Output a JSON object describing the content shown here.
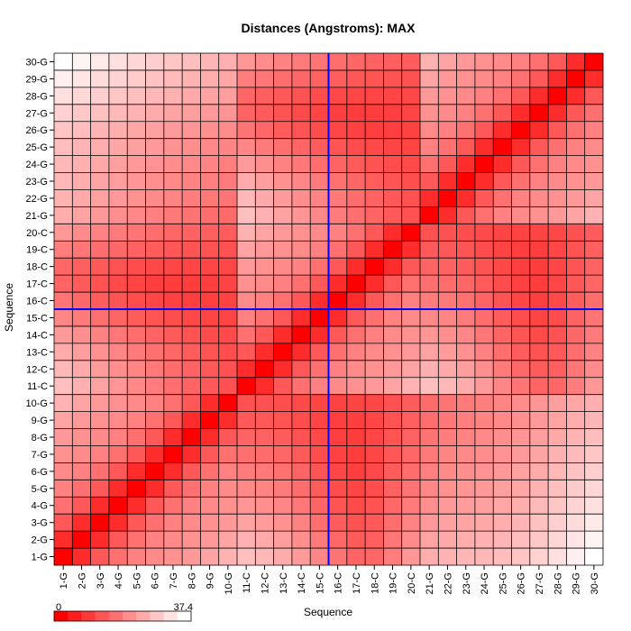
{
  "chart_data": {
    "type": "heatmap",
    "title": "Distances (Angstroms):  MAX",
    "xlabel": "Sequence",
    "ylabel": "Sequence",
    "x_ticks": [
      "1-G",
      "2-G",
      "3-G",
      "4-G",
      "5-G",
      "6-G",
      "7-G",
      "8-G",
      "9-G",
      "10-G",
      "11-C",
      "12-C",
      "13-C",
      "14-C",
      "15-C",
      "16-C",
      "17-C",
      "18-C",
      "19-C",
      "20-C",
      "21-G",
      "22-G",
      "23-G",
      "24-G",
      "25-G",
      "26-G",
      "27-G",
      "28-G",
      "29-G",
      "30-G"
    ],
    "y_ticks": [
      "1-G",
      "2-G",
      "3-G",
      "4-G",
      "5-G",
      "6-G",
      "7-G",
      "8-G",
      "9-G",
      "10-G",
      "11-C",
      "12-C",
      "13-C",
      "14-C",
      "15-C",
      "16-C",
      "17-C",
      "18-C",
      "19-C",
      "20-C",
      "21-G",
      "22-G",
      "23-G",
      "24-G",
      "25-G",
      "26-G",
      "27-G",
      "28-G",
      "29-G",
      "30-G"
    ],
    "color_scale": {
      "min": 0,
      "max": 37.4,
      "min_label": "0",
      "max_label": "37.4",
      "low_color": "#ff0000",
      "high_color": "#ffffff"
    },
    "crosshair": {
      "x": "15-C",
      "y": "15-C",
      "color": "#0000ff"
    },
    "matrix": [
      [
        0.0,
        6.5,
        12.9,
        16.4,
        18.9,
        20.2,
        21.3,
        22.4,
        24.0,
        26.1,
        28.0,
        27.0,
        25.1,
        22.6,
        19.7,
        17.0,
        14.7,
        15.0,
        18.4,
        22.1,
        25.4,
        26.3,
        26.7,
        27.0,
        27.7,
        28.9,
        30.6,
        32.8,
        35.0,
        37.4
      ],
      [
        6.5,
        0.0,
        6.5,
        12.9,
        16.4,
        18.9,
        20.2,
        21.3,
        22.4,
        24.0,
        25.9,
        24.9,
        23.2,
        20.8,
        18.0,
        15.3,
        13.4,
        14.0,
        17.3,
        20.6,
        23.9,
        24.9,
        25.4,
        25.8,
        26.6,
        27.7,
        29.4,
        31.5,
        33.6,
        35.8
      ],
      [
        12.9,
        6.5,
        0.0,
        6.5,
        12.9,
        16.4,
        18.9,
        20.2,
        21.3,
        22.4,
        23.7,
        22.8,
        21.3,
        19.0,
        16.3,
        13.7,
        12.1,
        13.0,
        16.2,
        19.2,
        22.3,
        23.6,
        24.1,
        24.6,
        25.4,
        26.5,
        28.2,
        30.2,
        32.2,
        34.2
      ],
      [
        16.4,
        12.9,
        6.5,
        0.0,
        6.5,
        12.9,
        16.4,
        18.9,
        20.2,
        21.3,
        21.8,
        21.0,
        19.6,
        17.4,
        14.8,
        12.3,
        10.9,
        12.1,
        15.3,
        18.1,
        21.0,
        22.4,
        23.0,
        23.5,
        24.4,
        25.5,
        27.1,
        29.1,
        31.0,
        32.9
      ],
      [
        18.9,
        16.4,
        12.9,
        6.5,
        0.0,
        6.5,
        12.9,
        16.4,
        18.9,
        20.2,
        20.0,
        19.4,
        18.1,
        16.0,
        13.5,
        11.2,
        10.0,
        11.3,
        14.3,
        17.0,
        19.8,
        21.3,
        22.0,
        22.5,
        23.4,
        24.5,
        26.1,
        28.0,
        29.8,
        31.6
      ],
      [
        20.2,
        18.9,
        16.4,
        12.9,
        6.5,
        0.0,
        6.5,
        12.9,
        16.4,
        18.9,
        18.2,
        17.7,
        16.5,
        14.6,
        12.3,
        10.3,
        9.3,
        10.7,
        13.5,
        16.0,
        18.7,
        20.3,
        21.0,
        21.6,
        22.5,
        23.6,
        25.1,
        26.9,
        28.6,
        30.3
      ],
      [
        21.3,
        20.2,
        18.9,
        16.4,
        12.9,
        6.5,
        0.0,
        6.5,
        12.9,
        16.4,
        16.3,
        15.9,
        14.9,
        13.3,
        11.3,
        9.6,
        9.0,
        10.3,
        12.8,
        15.1,
        17.7,
        19.3,
        20.0,
        20.7,
        21.6,
        22.6,
        24.1,
        25.8,
        27.4,
        29.0
      ],
      [
        22.4,
        21.3,
        20.2,
        18.9,
        16.4,
        12.9,
        6.5,
        0.0,
        6.5,
        12.9,
        14.6,
        14.3,
        13.5,
        12.1,
        10.5,
        9.3,
        9.0,
        10.1,
        12.3,
        14.4,
        16.8,
        18.4,
        19.2,
        19.9,
        20.8,
        21.8,
        23.2,
        24.8,
        26.3,
        27.8
      ],
      [
        24.0,
        22.4,
        21.3,
        20.2,
        18.9,
        16.4,
        12.9,
        6.5,
        0.0,
        6.5,
        13.1,
        12.9,
        12.3,
        11.3,
        10.0,
        9.3,
        9.3,
        10.1,
        12.0,
        13.9,
        16.1,
        17.6,
        18.5,
        19.2,
        20.1,
        21.1,
        22.4,
        23.9,
        25.3,
        26.7
      ],
      [
        26.1,
        24.0,
        22.4,
        21.3,
        20.2,
        18.9,
        16.4,
        12.9,
        6.5,
        0.0,
        11.9,
        11.9,
        11.5,
        10.8,
        10.0,
        9.7,
        9.9,
        10.4,
        11.9,
        13.6,
        15.6,
        17.0,
        17.9,
        18.6,
        19.5,
        20.5,
        21.7,
        23.1,
        24.4,
        25.7
      ],
      [
        28.0,
        25.9,
        23.7,
        21.8,
        20.0,
        18.2,
        16.3,
        14.6,
        13.1,
        11.9,
        0.0,
        6.5,
        12.9,
        16.4,
        18.9,
        20.2,
        21.3,
        22.4,
        24.0,
        26.1,
        28.0,
        27.0,
        25.1,
        22.6,
        19.7,
        17.0,
        14.7,
        15.0,
        18.4,
        22.1
      ],
      [
        27.0,
        24.9,
        22.8,
        21.0,
        19.4,
        17.7,
        15.9,
        14.3,
        12.9,
        11.9,
        6.5,
        0.0,
        6.5,
        12.9,
        16.4,
        18.9,
        20.2,
        21.3,
        22.4,
        24.0,
        25.9,
        24.9,
        23.2,
        20.8,
        18.0,
        15.3,
        13.4,
        14.0,
        17.3,
        20.6
      ],
      [
        25.1,
        23.2,
        21.3,
        19.6,
        18.1,
        16.5,
        14.9,
        13.5,
        12.3,
        11.5,
        12.9,
        6.5,
        0.0,
        6.5,
        12.9,
        16.4,
        18.9,
        20.2,
        21.3,
        22.4,
        23.7,
        22.8,
        21.3,
        19.0,
        16.3,
        13.7,
        12.1,
        13.0,
        16.2,
        19.2
      ],
      [
        22.6,
        20.8,
        19.0,
        17.4,
        16.0,
        14.6,
        13.3,
        12.1,
        11.3,
        10.8,
        16.4,
        12.9,
        6.5,
        0.0,
        6.5,
        12.9,
        16.4,
        18.9,
        20.2,
        21.3,
        21.8,
        21.0,
        19.6,
        17.4,
        14.8,
        12.3,
        10.9,
        12.1,
        15.3,
        18.1
      ],
      [
        19.7,
        18.0,
        16.3,
        14.8,
        13.5,
        12.3,
        11.3,
        10.5,
        10.0,
        10.0,
        18.9,
        16.4,
        12.9,
        6.5,
        0.0,
        6.5,
        12.9,
        16.4,
        18.9,
        20.2,
        20.0,
        19.4,
        18.1,
        16.0,
        13.5,
        11.2,
        10.0,
        11.3,
        14.3,
        17.0
      ],
      [
        17.0,
        15.3,
        13.7,
        12.3,
        11.2,
        10.3,
        9.6,
        9.3,
        9.3,
        9.7,
        20.2,
        18.9,
        16.4,
        12.9,
        6.5,
        0.0,
        6.5,
        12.9,
        16.4,
        18.9,
        18.2,
        17.7,
        16.5,
        14.6,
        12.3,
        10.3,
        9.3,
        10.7,
        13.5,
        16.0
      ],
      [
        14.7,
        13.4,
        12.1,
        10.9,
        10.0,
        9.3,
        9.0,
        9.0,
        9.3,
        9.9,
        21.3,
        20.2,
        18.9,
        16.4,
        12.9,
        6.5,
        0.0,
        6.5,
        12.9,
        16.4,
        16.3,
        15.9,
        14.9,
        13.3,
        11.3,
        9.6,
        9.0,
        10.3,
        12.8,
        15.1
      ],
      [
        15.0,
        14.0,
        13.0,
        12.1,
        11.3,
        10.7,
        10.3,
        10.1,
        10.1,
        10.4,
        22.4,
        21.3,
        20.2,
        18.9,
        16.4,
        12.9,
        6.5,
        0.0,
        6.5,
        12.9,
        14.6,
        14.3,
        13.5,
        12.1,
        10.5,
        9.3,
        9.0,
        10.1,
        12.3,
        14.4
      ],
      [
        18.4,
        17.3,
        16.2,
        15.3,
        14.3,
        13.5,
        12.8,
        12.3,
        12.0,
        11.9,
        24.0,
        22.4,
        21.3,
        20.2,
        18.9,
        16.4,
        12.9,
        6.5,
        0.0,
        6.5,
        13.1,
        12.9,
        12.3,
        11.3,
        10.0,
        9.3,
        9.3,
        10.1,
        12.0,
        13.9
      ],
      [
        22.1,
        20.6,
        19.2,
        18.1,
        17.0,
        16.0,
        15.1,
        14.4,
        13.9,
        13.6,
        26.1,
        24.0,
        22.4,
        21.3,
        20.2,
        18.9,
        16.4,
        12.9,
        6.5,
        0.0,
        11.9,
        11.9,
        11.5,
        10.8,
        10.0,
        9.7,
        9.9,
        10.4,
        11.9,
        13.6
      ],
      [
        25.4,
        23.9,
        22.3,
        21.0,
        19.8,
        18.7,
        17.7,
        16.8,
        16.1,
        15.6,
        28.0,
        25.9,
        23.7,
        21.8,
        20.0,
        18.2,
        16.3,
        14.6,
        13.1,
        11.9,
        0.0,
        6.5,
        12.9,
        16.4,
        18.9,
        20.2,
        21.3,
        22.4,
        24.0,
        26.1
      ],
      [
        26.3,
        24.9,
        23.6,
        22.4,
        21.3,
        20.3,
        19.3,
        18.4,
        17.6,
        17.0,
        27.0,
        24.9,
        22.8,
        21.0,
        19.4,
        17.7,
        15.9,
        14.3,
        12.9,
        11.9,
        6.5,
        0.0,
        6.5,
        12.9,
        16.4,
        18.9,
        20.2,
        21.3,
        22.4,
        24.0
      ],
      [
        26.7,
        25.4,
        24.1,
        23.0,
        22.0,
        21.0,
        20.0,
        19.2,
        18.5,
        17.9,
        25.1,
        23.2,
        21.3,
        19.6,
        18.1,
        16.5,
        14.9,
        13.5,
        12.3,
        11.5,
        12.9,
        6.5,
        0.0,
        6.5,
        12.9,
        16.4,
        18.9,
        20.2,
        21.3,
        22.4
      ],
      [
        27.0,
        25.8,
        24.6,
        23.5,
        22.5,
        21.6,
        20.7,
        19.9,
        19.2,
        18.6,
        22.6,
        20.8,
        19.0,
        17.4,
        16.0,
        14.6,
        13.3,
        12.1,
        11.3,
        10.8,
        16.4,
        12.9,
        6.5,
        0.0,
        6.5,
        12.9,
        16.4,
        18.9,
        20.2,
        21.3
      ],
      [
        27.7,
        26.6,
        25.4,
        24.4,
        23.4,
        22.5,
        21.6,
        20.8,
        20.1,
        19.5,
        19.7,
        18.0,
        16.3,
        14.8,
        13.5,
        12.3,
        11.3,
        10.5,
        10.0,
        10.0,
        18.9,
        16.4,
        12.9,
        6.5,
        0.0,
        6.5,
        12.9,
        16.4,
        18.9,
        20.2
      ],
      [
        28.9,
        27.7,
        26.5,
        25.5,
        24.5,
        23.6,
        22.6,
        21.8,
        21.1,
        20.5,
        17.0,
        15.3,
        13.7,
        12.3,
        11.2,
        10.3,
        9.6,
        9.3,
        9.3,
        9.7,
        20.2,
        18.9,
        16.4,
        12.9,
        6.5,
        0.0,
        6.5,
        12.9,
        16.4,
        18.9
      ],
      [
        30.6,
        29.4,
        28.2,
        27.1,
        26.1,
        25.1,
        24.1,
        23.2,
        22.4,
        21.7,
        14.7,
        13.4,
        12.1,
        10.9,
        10.0,
        9.3,
        9.0,
        9.0,
        9.3,
        9.9,
        21.3,
        20.2,
        18.9,
        16.4,
        12.9,
        6.5,
        0.0,
        6.5,
        12.9,
        16.4
      ],
      [
        32.8,
        31.5,
        30.2,
        29.1,
        28.0,
        26.9,
        25.8,
        24.8,
        23.9,
        23.1,
        15.0,
        14.0,
        13.0,
        12.1,
        11.3,
        10.7,
        10.3,
        10.1,
        10.1,
        10.4,
        22.4,
        21.3,
        20.2,
        18.9,
        16.4,
        12.9,
        6.5,
        0.0,
        6.5,
        12.9
      ],
      [
        35.0,
        33.6,
        32.2,
        31.0,
        29.8,
        28.6,
        27.4,
        26.3,
        25.3,
        24.4,
        18.4,
        17.3,
        16.2,
        15.3,
        14.3,
        13.5,
        12.8,
        12.3,
        12.0,
        11.9,
        24.0,
        22.4,
        21.3,
        20.2,
        18.9,
        16.4,
        12.9,
        6.5,
        0.0,
        6.5
      ],
      [
        37.4,
        35.8,
        34.2,
        32.9,
        31.6,
        30.3,
        29.0,
        27.8,
        26.7,
        25.7,
        22.1,
        20.6,
        19.2,
        18.1,
        17.0,
        16.0,
        15.1,
        14.4,
        13.9,
        13.6,
        26.1,
        24.0,
        22.4,
        21.3,
        20.2,
        18.9,
        16.4,
        12.9,
        6.5,
        0.0
      ]
    ]
  }
}
